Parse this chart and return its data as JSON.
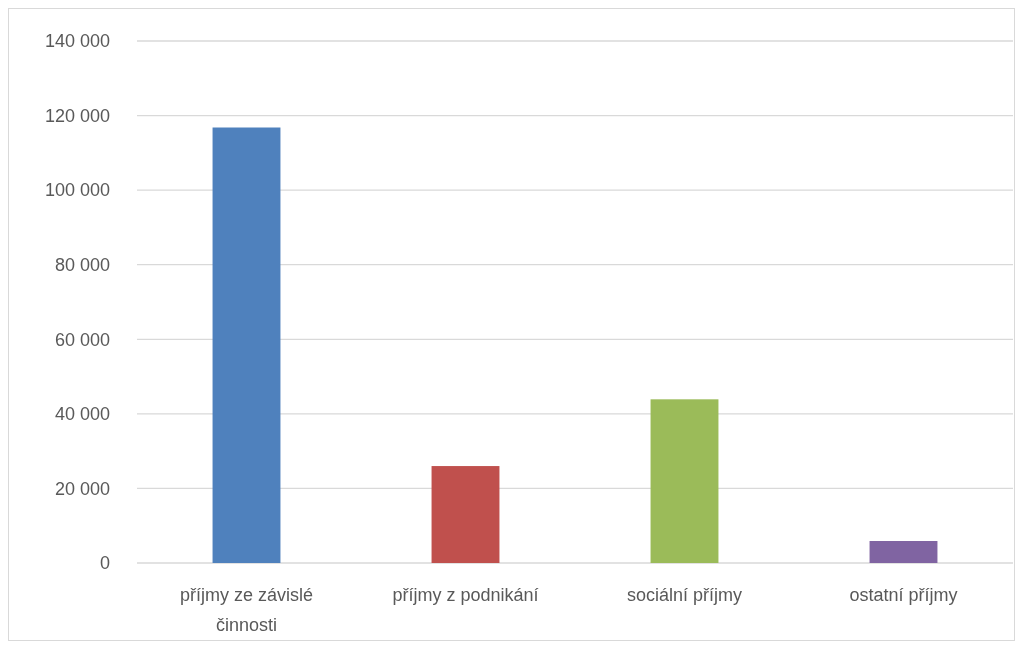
{
  "chart_data": {
    "type": "bar",
    "categories": [
      "příjmy ze závislé činnosti",
      "příjmy z podnikání",
      "sociální příjmy",
      "ostatní příjmy"
    ],
    "values": [
      116800,
      26000,
      43900,
      5900
    ],
    "colors": [
      "#4f81bd",
      "#c0504d",
      "#9bbb59",
      "#8064a2"
    ],
    "ylim": [
      0,
      140000
    ],
    "yticks": [
      {
        "value": 0,
        "label": "0"
      },
      {
        "value": 20000,
        "label": "20 000"
      },
      {
        "value": 40000,
        "label": "40 000"
      },
      {
        "value": 60000,
        "label": "60 000"
      },
      {
        "value": 80000,
        "label": "80 000"
      },
      {
        "value": 100000,
        "label": "100 000"
      },
      {
        "value": 120000,
        "label": "120 000"
      },
      {
        "value": 140000,
        "label": "140 000"
      }
    ],
    "grid": "y"
  }
}
